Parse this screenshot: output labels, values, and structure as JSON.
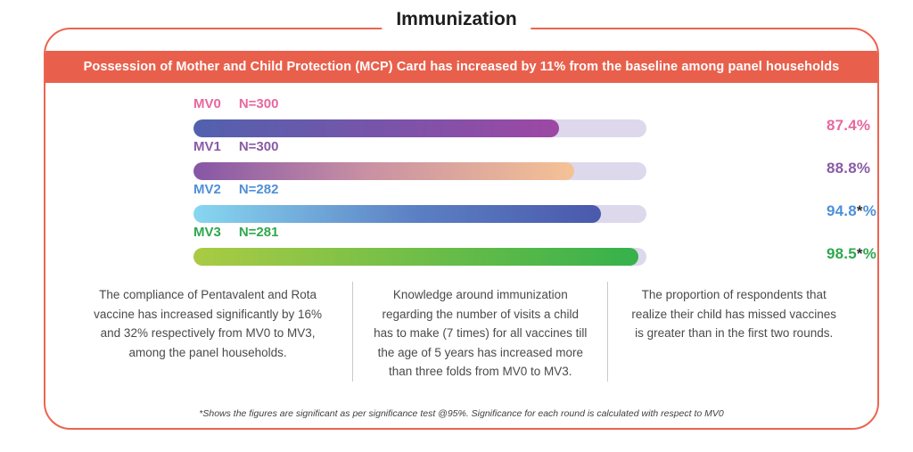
{
  "header": {
    "title": "Immunization"
  },
  "banner": {
    "text": "Possession of Mother and Child Protection (MCP) Card has increased by 11% from the baseline among panel households",
    "bg_color": "#e8604c"
  },
  "chart_data": {
    "type": "bar",
    "title": "Immunization",
    "subtitle": "Possession of Mother and Child Protection (MCP) Card has increased by 11% from the baseline among panel households",
    "categories": [
      "MV0",
      "MV1",
      "MV2",
      "MV3"
    ],
    "values": [
      87.4,
      88.8,
      94.8,
      98.5
    ],
    "xlim": [
      0,
      100
    ],
    "grid": false,
    "legend_position": "none",
    "track_color": "#ddd8eb",
    "star_color": "#2b2b2b",
    "rows": [
      {
        "round": "MV0",
        "sample": "N=300",
        "value": 87.4,
        "value_num": "87.4",
        "star": "",
        "unit": "%",
        "significant": false,
        "label_color": "#e8679f",
        "value_color": "#e8679f",
        "bar_fill_pct": 80.8,
        "bar_gradient": [
          "#5161ae",
          "#9d48a4"
        ]
      },
      {
        "round": "MV1",
        "sample": "N=300",
        "value": 88.8,
        "value_num": "88.8",
        "star": "",
        "unit": "%",
        "significant": false,
        "label_color": "#8a5ba6",
        "value_color": "#8a5ba6",
        "bar_fill_pct": 84.0,
        "bar_gradient": [
          "#8656a6",
          "#c890a3 45%",
          "#f5c295"
        ]
      },
      {
        "round": "MV2",
        "sample": "N=282",
        "value": 94.8,
        "value_num": "94.8",
        "star": "*",
        "unit": "%",
        "significant": true,
        "label_color": "#4e90d8",
        "value_color": "#4e90d8",
        "bar_fill_pct": 90.0,
        "bar_gradient": [
          "#87d7f1",
          "#5b7fc3 55%",
          "#4a59ac"
        ]
      },
      {
        "round": "MV3",
        "sample": "N=281",
        "value": 98.5,
        "value_num": "98.5",
        "star": "*",
        "unit": "%",
        "significant": true,
        "label_color": "#2ea84d",
        "value_color": "#2ea84d",
        "bar_fill_pct": 98.2,
        "bar_gradient": [
          "#aacb44",
          "#36b14b"
        ]
      }
    ]
  },
  "insights": [
    {
      "text": "The compliance of Pentavalent and Rota vaccine has increased significantly by 16% and 32% respectively from MV0 to MV3, among the panel households."
    },
    {
      "text": "Knowledge around immunization regarding the number of visits a child has to make (7 times) for all vaccines till the age of 5 years has increased more than three folds from MV0 to MV3."
    },
    {
      "text": "The proportion of respondents that realize their child has missed vaccines is greater than in the first two rounds."
    }
  ],
  "footnote": {
    "text": "*Shows the figures are significant as per significance test @95%. Significance for each round is calculated with respect to MV0"
  },
  "colors": {
    "accent": "#e8604c",
    "border": "#ec6450",
    "divider": "#c9c9c9",
    "body_text": "#4a4a4c"
  }
}
